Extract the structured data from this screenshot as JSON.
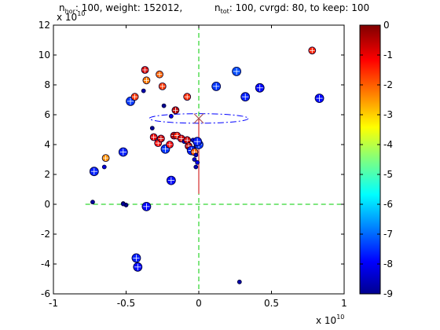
{
  "title": {
    "part1_base": "n",
    "part1_sub": "hor",
    "part1_rest": ": 100, weight: 152012,",
    "part2_base": "n",
    "part2_sub": "tot",
    "part2_rest": ": 100, cvrgd: 80, to keep: 100"
  },
  "exponents": {
    "x_base": "x 10",
    "x_power": "10",
    "y_base": "x 10",
    "y_power": "10"
  },
  "chart_data": [
    {
      "type": "scatter",
      "xlim": [
        -1,
        1
      ],
      "ylim": [
        -6,
        12
      ],
      "xticks": [
        -1,
        -0.5,
        0,
        0.5,
        1
      ],
      "xtick_labels": [
        "-1",
        "-0.5",
        "0",
        "0.5",
        "1"
      ],
      "yticks": [
        -6,
        -4,
        -2,
        0,
        2,
        4,
        6,
        8,
        10,
        12
      ],
      "ytick_labels": [
        "-6",
        "-4",
        "-2",
        "0",
        "2",
        "4",
        "6",
        "8",
        "10",
        "12"
      ],
      "grid": false,
      "crosshair": {
        "color": "#00cc00",
        "vertical_x": 0,
        "horizontal_y": 0,
        "horizontal_x_range": [
          -0.78,
          0.98
        ],
        "vertical_y_range": [
          -6,
          12
        ]
      },
      "ellipse": {
        "cx": 0,
        "cy": 5.75,
        "rx": 0.34,
        "ry": 0.32,
        "color": "#0000ff"
      },
      "center_marker": {
        "x": 0,
        "y": 5.75,
        "color": "#aa5555"
      },
      "red_line": {
        "x": 0,
        "y_from": 0.7,
        "y_to": 5.75,
        "color": "#cc0000"
      },
      "points": [
        {
          "x": -0.73,
          "y": 0.15,
          "v": -8.7
        },
        {
          "x": -0.52,
          "y": 0.05,
          "v": -8.8
        },
        {
          "x": -0.5,
          "y": -0.05,
          "v": -8.9
        },
        {
          "x": -0.52,
          "y": 0.02,
          "v": -8.8
        },
        {
          "x": -0.36,
          "y": -0.15,
          "v": -7.8
        },
        {
          "x": -0.72,
          "y": 2.2,
          "v": -7.6
        },
        {
          "x": -0.65,
          "y": 2.5,
          "v": -8.2
        },
        {
          "x": -0.64,
          "y": 3.1,
          "v": -2.4
        },
        {
          "x": -0.52,
          "y": 3.5,
          "v": -7.6
        },
        {
          "x": -0.47,
          "y": 6.9,
          "v": -7.4
        },
        {
          "x": -0.44,
          "y": 7.2,
          "v": -1.6
        },
        {
          "x": -0.37,
          "y": 9.0,
          "v": -0.8
        },
        {
          "x": -0.36,
          "y": 8.3,
          "v": -2.2
        },
        {
          "x": -0.38,
          "y": 7.6,
          "v": -8.6
        },
        {
          "x": -0.27,
          "y": 8.7,
          "v": -2.0
        },
        {
          "x": -0.25,
          "y": 7.9,
          "v": -1.6
        },
        {
          "x": -0.24,
          "y": 6.6,
          "v": -8.8
        },
        {
          "x": -0.08,
          "y": 7.2,
          "v": -1.5
        },
        {
          "x": -0.16,
          "y": 6.3,
          "v": -0.5
        },
        {
          "x": -0.19,
          "y": 5.9,
          "v": -8.0
        },
        {
          "x": 0.12,
          "y": 7.9,
          "v": -7.4
        },
        {
          "x": 0.26,
          "y": 8.9,
          "v": -7.2
        },
        {
          "x": 0.42,
          "y": 7.8,
          "v": -7.8
        },
        {
          "x": 0.32,
          "y": 7.2,
          "v": -7.6
        },
        {
          "x": 0.83,
          "y": 7.1,
          "v": -7.8
        },
        {
          "x": 0.78,
          "y": 10.3,
          "v": -1.4
        },
        {
          "x": -0.32,
          "y": 5.1,
          "v": -8.8
        },
        {
          "x": -0.31,
          "y": 4.5,
          "v": -0.9
        },
        {
          "x": -0.28,
          "y": 4.1,
          "v": -1.2
        },
        {
          "x": -0.26,
          "y": 4.4,
          "v": -0.7
        },
        {
          "x": -0.23,
          "y": 3.7,
          "v": -7.4
        },
        {
          "x": -0.2,
          "y": 4.0,
          "v": -1.0
        },
        {
          "x": -0.17,
          "y": 4.6,
          "v": -0.6
        },
        {
          "x": -0.15,
          "y": 4.6,
          "v": -1.4
        },
        {
          "x": -0.12,
          "y": 4.4,
          "v": -0.8
        },
        {
          "x": -0.1,
          "y": 4.2,
          "v": -8.2
        },
        {
          "x": -0.08,
          "y": 4.3,
          "v": -0.7
        },
        {
          "x": -0.07,
          "y": 3.9,
          "v": -0.5
        },
        {
          "x": -0.05,
          "y": 3.6,
          "v": -7.6
        },
        {
          "x": -0.03,
          "y": 3.5,
          "v": -2.0
        },
        {
          "x": -0.02,
          "y": 3.3,
          "v": -8.4
        },
        {
          "x": -0.04,
          "y": 4.3,
          "v": -8.0
        },
        {
          "x": -0.02,
          "y": 3.9,
          "v": -8.2
        },
        {
          "x": 0.0,
          "y": 4.0,
          "v": -7.4
        },
        {
          "x": -0.03,
          "y": 3.0,
          "v": -8.3
        },
        {
          "x": -0.01,
          "y": 2.8,
          "v": -8.0
        },
        {
          "x": -0.02,
          "y": 2.5,
          "v": -8.5
        },
        {
          "x": -0.01,
          "y": 4.2,
          "v": -7.6
        },
        {
          "x": -0.19,
          "y": 1.6,
          "v": -7.8
        },
        {
          "x": -0.43,
          "y": -3.6,
          "v": -7.6
        },
        {
          "x": -0.42,
          "y": -4.2,
          "v": -7.8
        },
        {
          "x": 0.28,
          "y": -5.2,
          "v": -8.6
        }
      ]
    },
    {
      "type": "heatmap",
      "role": "colorbar",
      "ylim": [
        -9,
        0
      ],
      "yticks": [
        0,
        -1,
        -2,
        -3,
        -4,
        -5,
        -6,
        -7,
        -8,
        -9
      ],
      "ytick_labels": [
        "0",
        "-1",
        "-2",
        "-3",
        "-4",
        "-5",
        "-6",
        "-7",
        "-8",
        "-9"
      ],
      "colormap": "jet"
    }
  ]
}
